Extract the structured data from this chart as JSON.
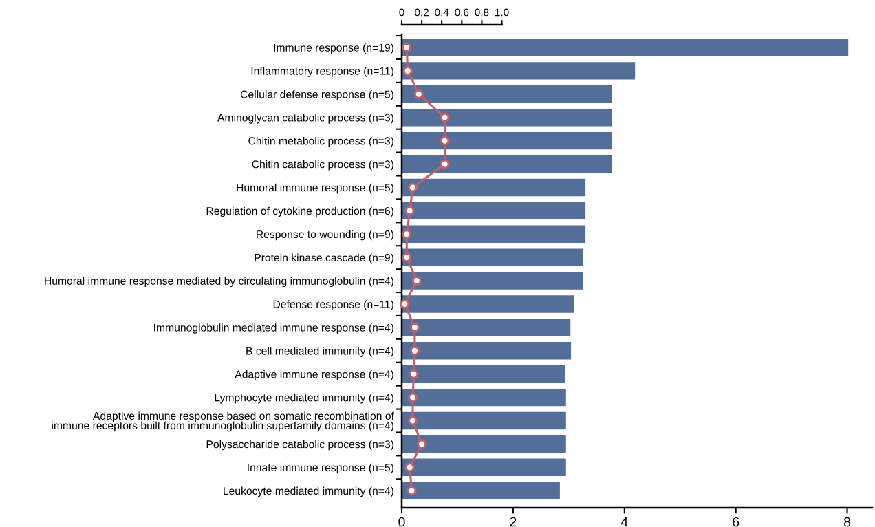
{
  "chart_data": {
    "type": "bar",
    "orientation": "horizontal",
    "categories": [
      "Immune response (n=19)",
      "Inflammatory response (n=11)",
      "Cellular defense response (n=5)",
      "Aminoglycan catabolic process (n=3)",
      "Chitin metabolic process (n=3)",
      "Chitin catabolic process (n=3)",
      "Humoral immune response (n=5)",
      "Regulation of cytokine production (n=6)",
      "Response to wounding (n=9)",
      "Protein kinase cascade (n=9)",
      "Humoral immune response mediated by circulating immunoglobulin (n=4)",
      "Defense response (n=11)",
      "Immunoglobulin mediated immune response (n=4)",
      "B cell mediated immunity (n=4)",
      "Adaptive immune response (n=4)",
      "Lymphocyte mediated immunity (n=4)",
      "Adaptive immune response based on somatic recombination of\nimmune receptors built from immunoglobulin superfamily domains (n=4)",
      "Polysaccharide catabolic process (n=3)",
      "Innate immune response (n=5)",
      "Leukocyte mediated immunity (n=4)"
    ],
    "series": [
      {
        "color": "#546e9a",
        "values": [
          8.02,
          4.19,
          3.78,
          3.78,
          3.78,
          3.78,
          3.3,
          3.3,
          3.3,
          3.25,
          3.25,
          3.1,
          3.03,
          3.04,
          2.94,
          2.95,
          2.95,
          2.95,
          2.95,
          2.84
        ]
      },
      {
        "type": "line",
        "axis": "x2",
        "color": "#c0606a",
        "marker": "circle",
        "line_style": "solid",
        "values": [
          0.05,
          0.06,
          0.17,
          0.43,
          0.43,
          0.43,
          0.11,
          0.08,
          0.05,
          0.05,
          0.15,
          0.03,
          0.13,
          0.13,
          0.12,
          0.11,
          0.11,
          0.2,
          0.08,
          0.1
        ]
      }
    ],
    "xlim": [
      0,
      8.45
    ],
    "xticks": [
      0,
      2,
      4,
      6,
      8
    ],
    "x2lim": [
      0,
      4.7
    ],
    "x2ticks": [
      {
        "value": 0,
        "label": "0"
      },
      0.2,
      0.4,
      0.6,
      0.8,
      {
        "value": 1.0,
        "label": "1.0"
      }
    ],
    "grid": false
  }
}
